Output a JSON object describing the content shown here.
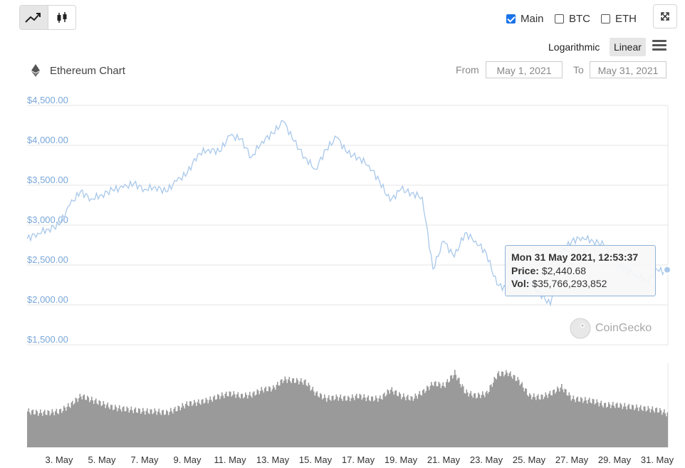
{
  "toolbar": {
    "line_icon": "trend-line-icon",
    "candle_icon": "candlestick-icon",
    "fullscreen_icon": "expand-arrows-icon",
    "menu_icon": "hamburger-menu-icon"
  },
  "toggles": {
    "main": {
      "label": "Main",
      "checked": true
    },
    "btc": {
      "label": "BTC",
      "checked": false
    },
    "eth": {
      "label": "ETH",
      "checked": false
    }
  },
  "scale": {
    "log_label": "Logarithmic",
    "linear_label": "Linear",
    "active": "Linear"
  },
  "title": "Ethereum Chart",
  "range": {
    "from_label": "From",
    "from_value": "May 1, 2021",
    "to_label": "To",
    "to_value": "May 31, 2021"
  },
  "tooltip": {
    "date": "Mon 31 May 2021, 12:53:37",
    "price_label": "Price:",
    "price_value": "$2,440.68",
    "vol_label": "Vol:",
    "vol_value": "$35,766,293,852"
  },
  "watermark": "CoinGecko",
  "colors": {
    "line": "#a9c8ea",
    "axis_text": "#7aa7d8",
    "volume": "#9a9a9a",
    "grid": "#e6e6e6"
  },
  "chart_data": {
    "type": "line",
    "ylim": [
      1500,
      4500
    ],
    "y_tick_labels": [
      "$4,500.00",
      "$4,000.00",
      "$3,500.00",
      "$3,000.00",
      "$2,500.00",
      "$2,000.00",
      "$1,500.00"
    ],
    "y_ticks": [
      4500,
      4000,
      3500,
      3000,
      2500,
      2000,
      1500
    ],
    "xlim": [
      1.5,
      31.5
    ],
    "x_ticks": [
      3,
      5,
      7,
      9,
      11,
      13,
      15,
      17,
      19,
      21,
      23,
      25,
      27,
      29,
      31
    ],
    "x_tick_labels": [
      "3. May",
      "5. May",
      "7. May",
      "9. May",
      "11. May",
      "13. May",
      "15. May",
      "17. May",
      "19. May",
      "21. May",
      "23. May",
      "25. May",
      "27. May",
      "29. May",
      "31. May"
    ],
    "x": [
      1.5,
      2,
      2.5,
      3,
      3.5,
      4,
      4.5,
      5,
      5.5,
      6,
      6.5,
      7,
      7.5,
      8,
      8.5,
      9,
      9.5,
      10,
      10.5,
      11,
      11.5,
      12,
      12.5,
      13,
      13.5,
      14,
      14.5,
      15,
      15.5,
      16,
      16.5,
      17,
      17.5,
      18,
      18.5,
      19,
      19.5,
      20,
      20.5,
      21,
      21.5,
      22,
      22.5,
      23,
      23.5,
      24,
      24.5,
      25,
      25.5,
      26,
      26.5,
      27,
      27.5,
      28,
      28.5,
      29,
      29.5,
      30,
      30.5,
      31,
      31.5
    ],
    "price": [
      2830,
      2900,
      2950,
      3000,
      3250,
      3420,
      3330,
      3380,
      3440,
      3470,
      3520,
      3450,
      3480,
      3420,
      3550,
      3650,
      3890,
      3950,
      3920,
      4120,
      4080,
      3850,
      4050,
      4150,
      4300,
      4050,
      3850,
      3700,
      3950,
      4100,
      3900,
      3850,
      3750,
      3550,
      3300,
      3450,
      3400,
      3350,
      2450,
      2800,
      2600,
      2900,
      2800,
      2650,
      2250,
      2200,
      2350,
      2300,
      2150,
      2000,
      2650,
      2800,
      2850,
      2800,
      2750,
      2550,
      2450,
      2380,
      2300,
      2440,
      2400
    ],
    "volume": [
      28,
      27,
      27,
      28,
      33,
      40,
      37,
      34,
      31,
      30,
      29,
      28,
      28,
      27,
      30,
      34,
      35,
      37,
      40,
      42,
      40,
      41,
      45,
      46,
      53,
      52,
      51,
      42,
      38,
      39,
      38,
      40,
      38,
      38,
      45,
      40,
      38,
      43,
      50,
      48,
      58,
      43,
      40,
      42,
      57,
      58,
      52,
      40,
      39,
      42,
      47,
      38,
      37,
      36,
      33,
      33,
      32,
      31,
      30,
      29,
      26
    ],
    "volume_note": "relative scale"
  }
}
